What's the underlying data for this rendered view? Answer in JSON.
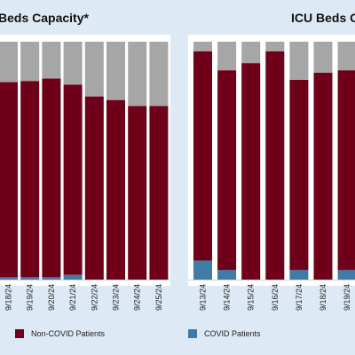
{
  "colors": {
    "background": "#dde9f4",
    "panel": "#ffffff",
    "non_covid": "#6e0019",
    "covid": "#3f7ba6",
    "available": "#a6a6a6"
  },
  "legend": {
    "non_covid_label": "Non-COVID Patients",
    "covid_label": "COVID Patients"
  },
  "chart_data": [
    {
      "type": "bar",
      "stacked": true,
      "title": "Beds Capacity*",
      "ylim": [
        0,
        100
      ],
      "categories": [
        "9/18/24",
        "9/19/24",
        "9/20/24",
        "9/21/24",
        "9/22/24",
        "9/23/24",
        "9/24/24",
        "9/25/24"
      ],
      "series": [
        {
          "name": "COVID Patients",
          "values": [
            1,
            1,
            1,
            2,
            0,
            0,
            0,
            0
          ]
        },
        {
          "name": "Non-COVID Patients",
          "values": [
            82,
            82.5,
            83.5,
            80,
            77,
            75.5,
            73,
            73
          ]
        },
        {
          "values": [
            17,
            16.5,
            15.5,
            18,
            23,
            24.5,
            27,
            27
          ]
        }
      ]
    },
    {
      "type": "bar",
      "stacked": true,
      "title": "ICU Beds C",
      "ylim": [
        0,
        100
      ],
      "categories": [
        "9/13/24",
        "9/14/24",
        "9/15/24",
        "9/16/24",
        "9/17/24",
        "9/18/24",
        "9/19/24"
      ],
      "series": [
        {
          "name": "COVID Patients",
          "values": [
            8,
            4,
            0,
            0,
            4,
            0,
            4
          ]
        },
        {
          "name": "Non-COVID Patients",
          "values": [
            88,
            84,
            91,
            96,
            80,
            87,
            84
          ]
        },
        {
          "values": [
            4,
            12,
            9,
            4,
            16,
            13,
            12
          ]
        }
      ]
    }
  ]
}
